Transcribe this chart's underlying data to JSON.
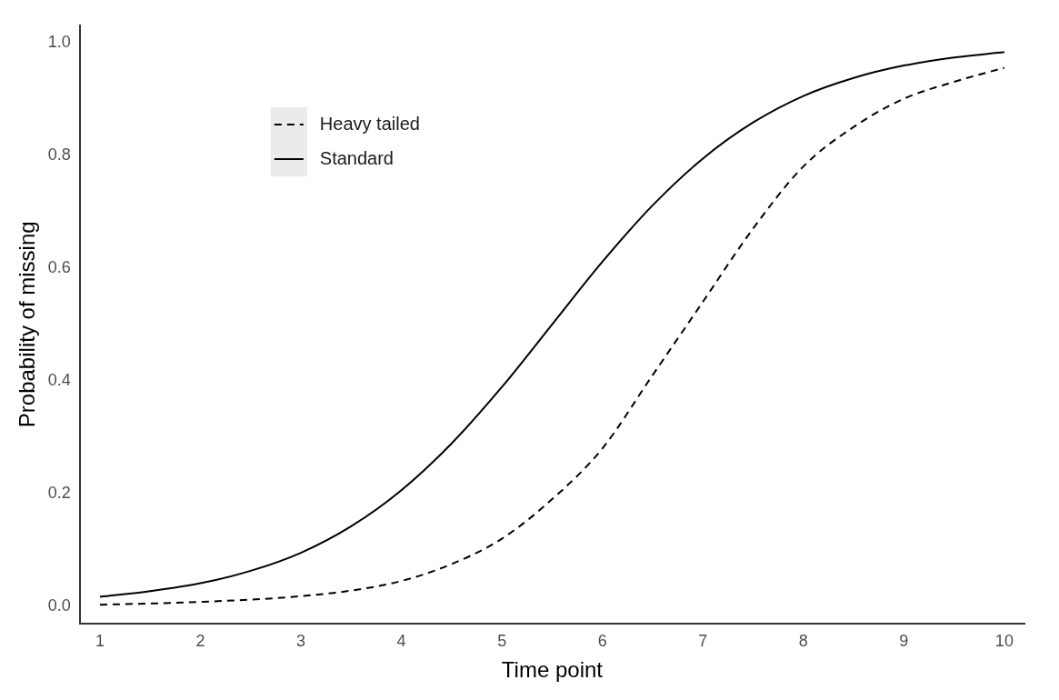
{
  "chart_data": {
    "type": "line",
    "xlabel": "Time point",
    "ylabel": "Probability of missing",
    "x": [
      1,
      1.5,
      2,
      2.5,
      3,
      3.5,
      4,
      4.5,
      5,
      5.5,
      6,
      6.5,
      7,
      7.5,
      8,
      8.5,
      9,
      9.5,
      10
    ],
    "series": [
      {
        "name": "Heavy tailed",
        "color": "#000000",
        "line_style": "dashed",
        "values": [
          0.003,
          0.005,
          0.008,
          0.012,
          0.018,
          0.028,
          0.045,
          0.075,
          0.12,
          0.19,
          0.28,
          0.41,
          0.54,
          0.67,
          0.78,
          0.85,
          0.9,
          0.93,
          0.955
        ]
      },
      {
        "name": "Standard",
        "color": "#000000",
        "line_style": "solid",
        "values": [
          0.017,
          0.027,
          0.041,
          0.063,
          0.095,
          0.142,
          0.206,
          0.289,
          0.389,
          0.5,
          0.611,
          0.711,
          0.794,
          0.858,
          0.905,
          0.937,
          0.959,
          0.973,
          0.983
        ]
      }
    ],
    "xlim": [
      0.8,
      10.2
    ],
    "xticks": [
      1,
      2,
      3,
      4,
      5,
      6,
      7,
      8,
      9,
      10
    ],
    "ylim": [
      -0.03,
      1.03
    ],
    "yticks": [
      {
        "value": 0,
        "label": "0.0"
      },
      {
        "value": 0.2,
        "label": "0.2"
      },
      {
        "value": 0.4,
        "label": "0.4"
      },
      {
        "value": 0.6,
        "label": "0.6"
      },
      {
        "value": 0.8,
        "label": "0.8"
      },
      {
        "value": 1,
        "label": "1.0"
      }
    ],
    "grid": false,
    "legend": "top left",
    "marker": "none"
  }
}
